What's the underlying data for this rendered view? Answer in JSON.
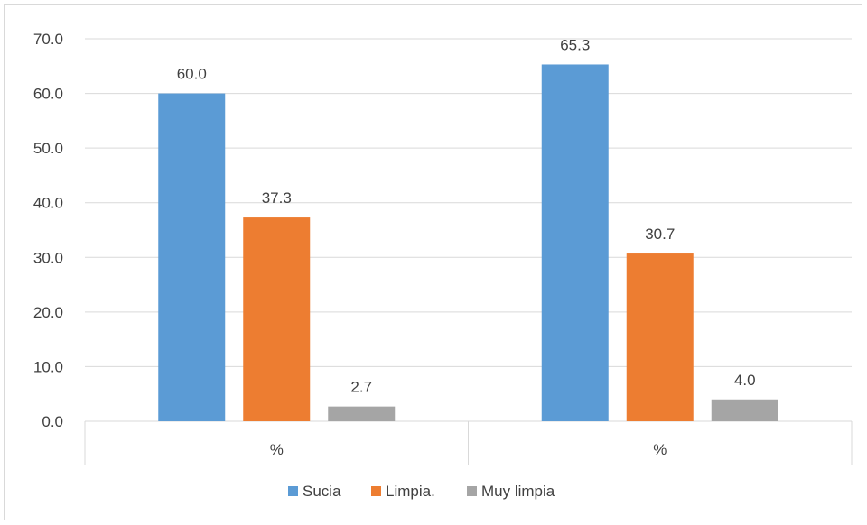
{
  "chart_data": {
    "type": "bar",
    "categories": [
      "%",
      "%"
    ],
    "series": [
      {
        "name": "Sucia",
        "values": [
          60.0,
          65.3
        ],
        "color": "#5b9bd5"
      },
      {
        "name": "Limpia.",
        "values": [
          37.3,
          30.7
        ],
        "color": "#ed7d31"
      },
      {
        "name": "Muy limpia",
        "values": [
          2.7,
          4.0
        ],
        "color": "#a5a5a5"
      }
    ],
    "data_labels": [
      [
        "60.0",
        "65.3"
      ],
      [
        "37.3",
        "30.7"
      ],
      [
        "2.7",
        "4.0"
      ]
    ],
    "y_ticks": [
      "0.0",
      "10.0",
      "20.0",
      "30.0",
      "40.0",
      "50.0",
      "60.0",
      "70.0"
    ],
    "ylim": [
      0,
      70
    ],
    "grid": true,
    "legend_position": "bottom",
    "title": "",
    "xlabel": "",
    "ylabel": ""
  }
}
